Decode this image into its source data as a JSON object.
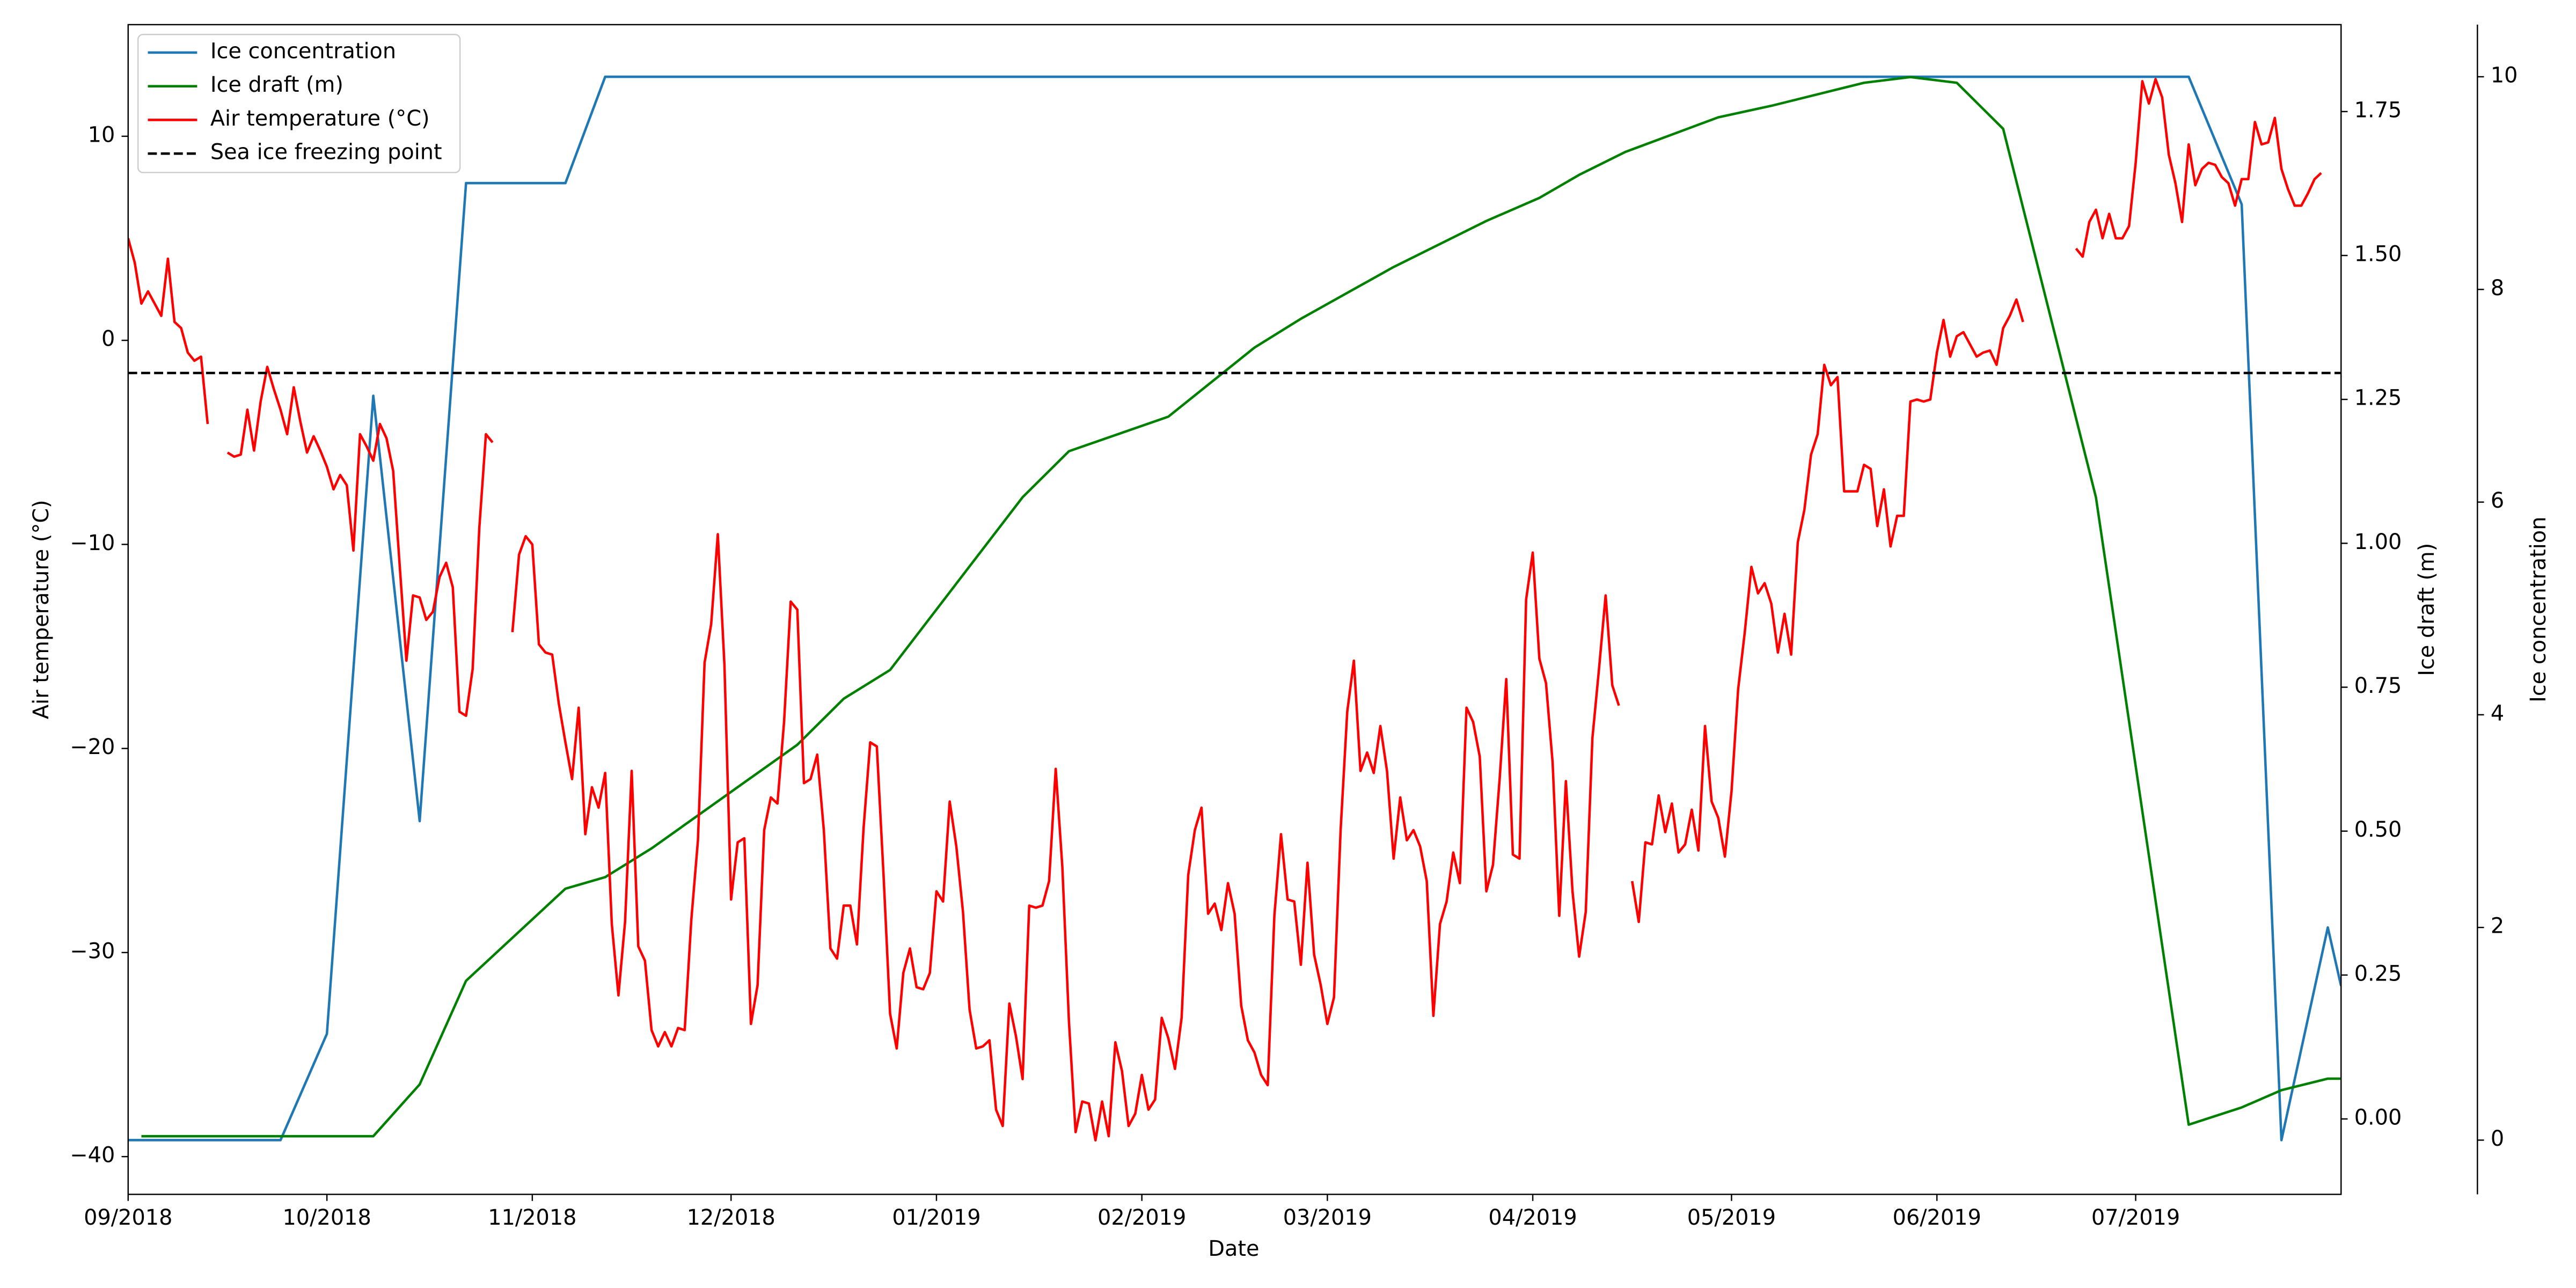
{
  "chart_data": {
    "type": "line",
    "x_label": "Date",
    "y_label": "Air temperature (°C)",
    "y2_label": "Ice draft (m)",
    "y3_label": "Ice concentration",
    "legend": "upper left",
    "grid": false,
    "xlim": [
      0,
      334
    ],
    "xticks": [
      {
        "value": 0,
        "label": "09/2018"
      },
      {
        "value": 30,
        "label": "10/2018"
      },
      {
        "value": 61,
        "label": "11/2018"
      },
      {
        "value": 91,
        "label": "12/2018"
      },
      {
        "value": 122,
        "label": "01/2019"
      },
      {
        "value": 153,
        "label": "02/2019"
      },
      {
        "value": 181,
        "label": "03/2019"
      },
      {
        "value": 212,
        "label": "04/2019"
      },
      {
        "value": 242,
        "label": "05/2019"
      },
      {
        "value": 273,
        "label": "06/2019"
      },
      {
        "value": 303,
        "label": "07/2019"
      }
    ],
    "ylim": [
      -41.85,
      15.47
    ],
    "yticks": [
      {
        "value": -40,
        "label": "−40"
      },
      {
        "value": -30,
        "label": "−30"
      },
      {
        "value": -20,
        "label": "−20"
      },
      {
        "value": -10,
        "label": "−10"
      },
      0,
      10
    ],
    "y2lim": [
      -0.131,
      1.901
    ],
    "y2ticks": [
      {
        "value": 0,
        "label": "0.00"
      },
      0.25,
      {
        "value": 0.5,
        "label": "0.50"
      },
      0.75,
      {
        "value": 1,
        "label": "1.00"
      },
      1.25,
      {
        "value": 1.5,
        "label": "1.50"
      },
      1.75
    ],
    "y3lim": [
      -0.51,
      10.49
    ],
    "y3ticks": [
      0,
      2,
      4,
      6,
      8,
      10
    ],
    "series": [
      {
        "name": "Ice concentration",
        "color": "#1f77b4",
        "axis": "y3",
        "x": [
          0,
          15,
          23,
          30,
          37,
          44,
          51,
          66,
          72,
          311,
          319,
          325,
          332,
          334
        ],
        "values": [
          0,
          0,
          0,
          1.0,
          7.0,
          3.0,
          9.0,
          9.0,
          10,
          10,
          8.8,
          0,
          2.0,
          1.45
        ]
      },
      {
        "name": "Ice draft (m)",
        "color": "#008000",
        "axis": "y2",
        "x": [
          2,
          15,
          23,
          37,
          44,
          51,
          66,
          72,
          79,
          101,
          108,
          115,
          135,
          142,
          157,
          170,
          177,
          191,
          205,
          213,
          219,
          226,
          240,
          248,
          262,
          269,
          276,
          283,
          297,
          311,
          319,
          325,
          332,
          334
        ],
        "values": [
          -0.03,
          -0.03,
          -0.03,
          -0.03,
          0.06,
          0.24,
          0.4,
          0.42,
          0.47,
          0.65,
          0.73,
          0.78,
          1.08,
          1.16,
          1.22,
          1.34,
          1.39,
          1.48,
          1.56,
          1.6,
          1.64,
          1.68,
          1.74,
          1.76,
          1.8,
          1.81,
          1.8,
          1.72,
          1.08,
          -0.01,
          0.02,
          0.05,
          0.07,
          0.07
        ]
      },
      {
        "name": "Air temperature (°C)",
        "color": "#ff0000",
        "axis": "y",
        "x": [
          0,
          1,
          2,
          3,
          4,
          5,
          6,
          7,
          8,
          9,
          10,
          11,
          12,
          13,
          15,
          16,
          17,
          18,
          19,
          20,
          21,
          22,
          23,
          24,
          25,
          26,
          27,
          28,
          29,
          30,
          31,
          32,
          33,
          34,
          35,
          36,
          37,
          38,
          39,
          40,
          41,
          42,
          43,
          44,
          45,
          46,
          47,
          48,
          49,
          50,
          51,
          52,
          53,
          54,
          55,
          56,
          58,
          59,
          60,
          61,
          62,
          63,
          64,
          65,
          66,
          67,
          68,
          69,
          70,
          71,
          72,
          73,
          74,
          75,
          76,
          77,
          78,
          79,
          80,
          81,
          82,
          83,
          84,
          85,
          86,
          87,
          88,
          89,
          90,
          91,
          92,
          93,
          94,
          95,
          96,
          97,
          98,
          99,
          100,
          101,
          102,
          103,
          104,
          105,
          106,
          107,
          108,
          109,
          110,
          111,
          112,
          113,
          114,
          115,
          116,
          117,
          118,
          119,
          120,
          121,
          122,
          123,
          124,
          125,
          126,
          127,
          128,
          129,
          130,
          131,
          132,
          133,
          134,
          135,
          136,
          137,
          138,
          139,
          140,
          141,
          142,
          143,
          144,
          145,
          146,
          147,
          148,
          149,
          150,
          151,
          152,
          153,
          154,
          155,
          156,
          157,
          158,
          159,
          160,
          161,
          162,
          163,
          164,
          165,
          166,
          167,
          168,
          169,
          170,
          171,
          172,
          173,
          174,
          175,
          176,
          177,
          178,
          179,
          180,
          181,
          182,
          183,
          184,
          185,
          186,
          187,
          188,
          189,
          190,
          191,
          192,
          193,
          194,
          195,
          196,
          197,
          198,
          199,
          200,
          201,
          202,
          203,
          204,
          205,
          206,
          207,
          208,
          209,
          210,
          211,
          212,
          213,
          214,
          215,
          216,
          217,
          218,
          219,
          220,
          221,
          222,
          223,
          224,
          225,
          226,
          227,
          228,
          229,
          230,
          231,
          232,
          233,
          234,
          235,
          236,
          237,
          238,
          239,
          240,
          241,
          242,
          243,
          244,
          245,
          246,
          247,
          248,
          249,
          250,
          251,
          252,
          253,
          254,
          255,
          256,
          257,
          258,
          259,
          260,
          261,
          262,
          263,
          264,
          265,
          266,
          267,
          268,
          269,
          270,
          271,
          272,
          273,
          274,
          275,
          276,
          277,
          278,
          279,
          280,
          281,
          282,
          283,
          284,
          285,
          286,
          287,
          294,
          295,
          296,
          297,
          298,
          299,
          300,
          301,
          302,
          303,
          304,
          305,
          306,
          307,
          308,
          309,
          310,
          311,
          312,
          313,
          314,
          315,
          316,
          317,
          318,
          319,
          320,
          321,
          322,
          323,
          324,
          325,
          326,
          327,
          328,
          329,
          330,
          331
        ],
        "values": [
          5.0,
          3.8,
          1.8,
          2.4,
          1.8,
          1.2,
          4.0,
          0.9,
          0.6,
          -0.6,
          -1.0,
          -0.8,
          -4.1,
          null,
          -5.5,
          -5.7,
          -5.6,
          -3.4,
          -5.4,
          -3.0,
          -1.3,
          -2.4,
          -3.4,
          -4.6,
          -2.3,
          -4.0,
          -5.5,
          -4.7,
          -5.4,
          -6.2,
          -7.3,
          -6.6,
          -7.1,
          -10.3,
          -4.6,
          -5.2,
          -5.9,
          -4.1,
          -4.8,
          -6.4,
          -11.1,
          -15.7,
          -12.5,
          -12.6,
          -13.7,
          -13.3,
          -11.6,
          -10.9,
          -12.1,
          -18.2,
          -18.4,
          -16.1,
          -9.2,
          -4.6,
          -5.0,
          null,
          -14.3,
          -10.5,
          -9.6,
          -10.0,
          -14.9,
          -15.3,
          -15.4,
          -17.8,
          -19.7,
          -21.5,
          -18.0,
          -24.2,
          -21.9,
          -22.9,
          -21.2,
          -28.6,
          -32.1,
          -28.5,
          -21.1,
          -29.7,
          -30.4,
          -33.8,
          -34.6,
          -33.9,
          -34.6,
          -33.7,
          -33.8,
          -28.4,
          -24.5,
          -15.8,
          -13.9,
          -9.5,
          -15.9,
          -27.4,
          -24.6,
          -24.4,
          -33.5,
          -31.6,
          -24.0,
          -22.4,
          -22.7,
          -18.7,
          -12.8,
          -13.2,
          -21.7,
          -21.5,
          -20.3,
          -24.0,
          -29.8,
          -30.3,
          -27.7,
          -27.7,
          -29.6,
          -23.9,
          -19.7,
          -19.9,
          -26.1,
          -33.0,
          -34.7,
          -31.0,
          -29.8,
          -31.7,
          -31.8,
          -31.0,
          -27.0,
          -27.5,
          -22.6,
          -24.8,
          -28.0,
          -32.8,
          -34.7,
          -34.6,
          -34.3,
          -37.7,
          -38.5,
          -32.5,
          -34.1,
          -36.2,
          -27.7,
          -27.8,
          -27.7,
          -26.5,
          -21.0,
          -25.8,
          -33.4,
          -38.8,
          -37.3,
          -37.4,
          -39.2,
          -37.3,
          -39.0,
          -34.4,
          -35.8,
          -38.5,
          -37.9,
          -36.0,
          -37.7,
          -37.2,
          -33.2,
          -34.2,
          -35.7,
          -33.2,
          -26.2,
          -24.0,
          -22.9,
          -28.1,
          -27.6,
          -28.9,
          -26.6,
          -28.1,
          -32.6,
          -34.3,
          -34.9,
          -36.0,
          -36.5,
          -28.2,
          -24.2,
          -27.4,
          -27.5,
          -30.6,
          -25.6,
          -30.1,
          -31.6,
          -33.5,
          -32.2,
          -24.0,
          -18.2,
          -15.7,
          -21.1,
          -20.2,
          -21.2,
          -18.9,
          -21.1,
          -25.4,
          -22.4,
          -24.5,
          -24.0,
          -24.8,
          -26.5,
          -33.1,
          -28.6,
          -27.5,
          -25.1,
          -26.6,
          -18.0,
          -18.7,
          -20.4,
          -27.0,
          -25.7,
          -21.5,
          -16.6,
          -25.2,
          -25.4,
          -12.7,
          -10.4,
          -15.6,
          -16.8,
          -20.7,
          -28.2,
          -21.6,
          -27.0,
          -30.2,
          -28.0,
          -19.5,
          -16.1,
          -12.5,
          -16.9,
          -17.9,
          null,
          -26.5,
          -28.5,
          -24.6,
          -24.7,
          -22.3,
          -24.1,
          -22.7,
          -25.1,
          -24.7,
          -23.0,
          -25.0,
          -18.9,
          -22.6,
          -23.4,
          -25.3,
          -22.1,
          -17.1,
          -14.3,
          -11.1,
          -12.4,
          -11.9,
          -12.9,
          -15.3,
          -13.4,
          -15.4,
          -9.9,
          -8.3,
          -5.6,
          -4.6,
          -1.2,
          -2.2,
          -1.8,
          -7.4,
          -7.4,
          -7.4,
          -6.1,
          -6.3,
          -9.1,
          -7.3,
          -10.1,
          -8.6,
          -8.6,
          -3.0,
          -2.9,
          -3.0,
          -2.9,
          -0.6,
          1.0,
          -0.8,
          0.2,
          0.4,
          -0.2,
          -0.8,
          -0.6,
          -0.5,
          -1.2,
          0.6,
          1.2,
          2.0,
          0.9,
          null,
          4.5,
          4.1,
          5.8,
          6.4,
          5.0,
          6.2,
          5.0,
          5.0,
          5.6,
          8.7,
          12.7,
          11.6,
          12.8,
          11.9,
          9.1,
          7.7,
          5.8,
          9.6,
          7.6,
          8.4,
          8.7,
          8.6,
          8.0,
          7.7,
          6.6,
          7.9,
          7.9,
          10.7,
          9.6,
          9.7,
          10.9,
          8.4,
          7.4,
          6.6,
          6.6,
          7.2,
          7.9,
          8.2
        ]
      }
    ],
    "reference_line": {
      "name": "Sea ice freezing point",
      "value": -1.6,
      "color": "#000000",
      "style": "dashed"
    }
  }
}
